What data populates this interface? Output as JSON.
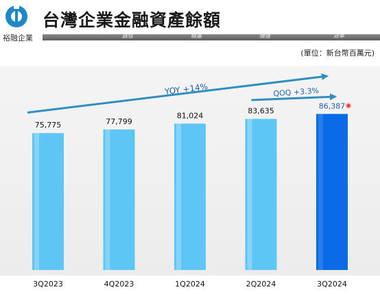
{
  "header": {
    "title": "台灣企業金融資產餘額",
    "brand": "裕融企業",
    "mottos": [
      "誠信",
      "積進",
      "價值",
      "效率"
    ],
    "unit": "(單位：新台幣百萬元)"
  },
  "colors": {
    "bar_light": "#5dc6f5",
    "bar_highlight": "#0a6be6",
    "arrow": "#2f8dbf",
    "annotation_text": "#1f5fb8",
    "highlight_label": "#1f5fb8",
    "marker": "#e53935"
  },
  "chart_data": {
    "type": "bar",
    "title": "",
    "xlabel": "",
    "ylabel": "",
    "ylim": [
      0,
      110000
    ],
    "grid": false,
    "categories": [
      "3Q2023",
      "4Q2023",
      "1Q2024",
      "2Q2024",
      "3Q2024"
    ],
    "values": [
      75775,
      77799,
      81024,
      83635,
      86387
    ],
    "value_labels": [
      "75,775",
      "77,799",
      "81,024",
      "83,635",
      "86,387"
    ],
    "highlight_index": 4,
    "annotations": [
      {
        "text": "YOY +14%",
        "from": "3Q2023",
        "to": "3Q2024"
      },
      {
        "text": "QOQ +3.3%",
        "from": "2Q2024",
        "to": "3Q2024"
      }
    ]
  }
}
